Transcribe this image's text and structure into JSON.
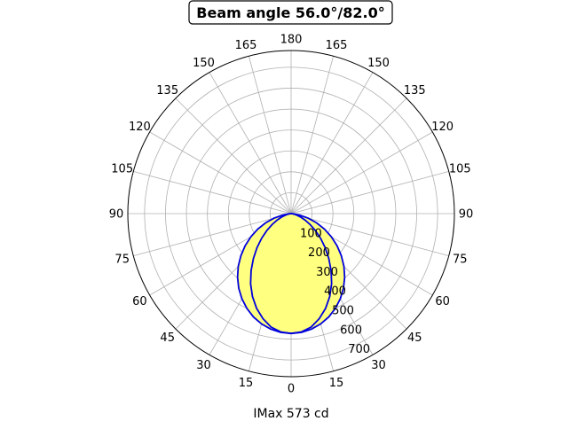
{
  "chart_data": {
    "type": "polar",
    "title": "Beam angle 56.0°/82.0°",
    "xlabel": "IMax 573 cd",
    "angle_ticks": [
      "180",
      "165",
      "150",
      "135",
      "120",
      "105",
      "90",
      "75",
      "60",
      "45",
      "30",
      "15",
      "0",
      "15",
      "30",
      "45",
      "60",
      "75",
      "90",
      "105",
      "120",
      "135",
      "150",
      "165"
    ],
    "radial_ticks": [
      100,
      200,
      300,
      400,
      500,
      600,
      700
    ],
    "rmax": 780,
    "grid": true,
    "series": [
      {
        "curve": "inner",
        "angles_deg": [
          0,
          5,
          10,
          15,
          20,
          25,
          30,
          35,
          40,
          45,
          50,
          55,
          60,
          65,
          70,
          75,
          80,
          85,
          90
        ],
        "values_cd": [
          573,
          568,
          551,
          520,
          482,
          437,
          387,
          333,
          280,
          230,
          184,
          142,
          105,
          74,
          49,
          29,
          14,
          5,
          0
        ]
      },
      {
        "curve": "outer",
        "angles_deg": [
          0,
          5,
          10,
          15,
          20,
          25,
          30,
          35,
          40,
          45,
          50,
          55,
          60,
          65,
          70,
          75,
          80,
          85,
          90
        ],
        "values_cd": [
          573,
          570,
          561,
          546,
          526,
          500,
          470,
          436,
          398,
          357,
          313,
          268,
          222,
          176,
          130,
          85,
          42,
          12,
          0
        ]
      }
    ],
    "colors": {
      "fill": "#ffff80",
      "line": "#0000dd",
      "grid": "#b0b0b0",
      "axis": "#000000"
    }
  }
}
